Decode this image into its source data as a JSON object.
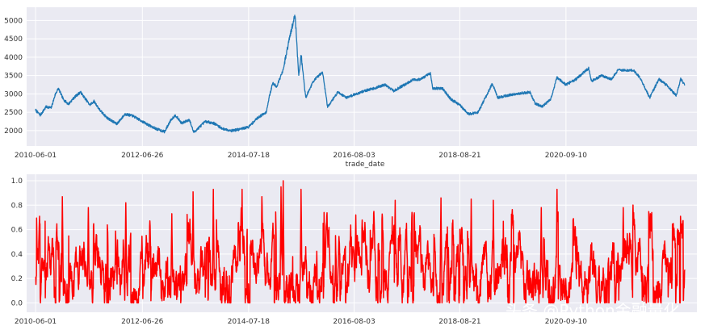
{
  "chart_data": [
    {
      "type": "line",
      "xlabel": "trade_date",
      "ylabel": "",
      "x_range": [
        "2010-06-01",
        "2022-12-30"
      ],
      "ylim": [
        1800,
        5250
      ],
      "yticks": [
        2000,
        2500,
        3000,
        3500,
        4000,
        4500,
        5000
      ],
      "xticks": [
        "2010-06-01",
        "2012-06-26",
        "2014-07-18",
        "2016-08-03",
        "2018-08-21",
        "2020-09-10"
      ],
      "grid": true,
      "series": [
        {
          "color": "#1f77b4",
          "points": [
            [
              "2010-06-01",
              2560
            ],
            [
              "2010-07-05",
              2420
            ],
            [
              "2010-08-15",
              2650
            ],
            [
              "2010-09-20",
              2620
            ],
            [
              "2010-10-20",
              3000
            ],
            [
              "2010-11-10",
              3150
            ],
            [
              "2010-12-15",
              2850
            ],
            [
              "2011-01-20",
              2720
            ],
            [
              "2011-03-01",
              2900
            ],
            [
              "2011-04-15",
              3050
            ],
            [
              "2011-06-20",
              2700
            ],
            [
              "2011-07-20",
              2800
            ],
            [
              "2011-09-01",
              2550
            ],
            [
              "2011-10-20",
              2350
            ],
            [
              "2011-12-28",
              2180
            ],
            [
              "2012-02-25",
              2450
            ],
            [
              "2012-04-20",
              2400
            ],
            [
              "2012-06-26",
              2250
            ],
            [
              "2012-08-10",
              2150
            ],
            [
              "2012-10-01",
              2050
            ],
            [
              "2012-12-01",
              1970
            ],
            [
              "2013-01-15",
              2300
            ],
            [
              "2013-02-15",
              2420
            ],
            [
              "2013-04-01",
              2200
            ],
            [
              "2013-05-25",
              2300
            ],
            [
              "2013-06-25",
              1950
            ],
            [
              "2013-09-15",
              2250
            ],
            [
              "2013-11-15",
              2200
            ],
            [
              "2014-01-15",
              2050
            ],
            [
              "2014-03-20",
              2000
            ],
            [
              "2014-05-10",
              2030
            ],
            [
              "2014-07-18",
              2100
            ],
            [
              "2014-09-20",
              2350
            ],
            [
              "2014-11-20",
              2500
            ],
            [
              "2014-12-10",
              2900
            ],
            [
              "2015-01-05",
              3300
            ],
            [
              "2015-02-01",
              3200
            ],
            [
              "2015-03-20",
              3650
            ],
            [
              "2015-04-30",
              4450
            ],
            [
              "2015-06-12",
              5166
            ],
            [
              "2015-07-08",
              3500
            ],
            [
              "2015-07-25",
              4050
            ],
            [
              "2015-08-26",
              2900
            ],
            [
              "2015-10-20",
              3350
            ],
            [
              "2015-12-23",
              3600
            ],
            [
              "2016-01-28",
              2650
            ],
            [
              "2016-04-10",
              3050
            ],
            [
              "2016-06-10",
              2900
            ],
            [
              "2016-08-03",
              2980
            ],
            [
              "2016-10-15",
              3080
            ],
            [
              "2016-12-20",
              3150
            ],
            [
              "2017-03-10",
              3250
            ],
            [
              "2017-05-10",
              3080
            ],
            [
              "2017-07-25",
              3250
            ],
            [
              "2017-09-20",
              3380
            ],
            [
              "2017-11-15",
              3400
            ],
            [
              "2018-01-26",
              3560
            ],
            [
              "2018-02-09",
              3150
            ],
            [
              "2018-04-20",
              3150
            ],
            [
              "2018-06-20",
              2850
            ],
            [
              "2018-08-21",
              2700
            ],
            [
              "2018-10-19",
              2450
            ],
            [
              "2018-12-28",
              2500
            ],
            [
              "2019-02-25",
              2950
            ],
            [
              "2019-04-08",
              3280
            ],
            [
              "2019-05-15",
              2900
            ],
            [
              "2019-07-15",
              2950
            ],
            [
              "2019-09-20",
              3000
            ],
            [
              "2019-12-31",
              3050
            ],
            [
              "2020-02-03",
              2750
            ],
            [
              "2020-03-23",
              2650
            ],
            [
              "2020-05-25",
              2850
            ],
            [
              "2020-07-09",
              3450
            ],
            [
              "2020-09-10",
              3250
            ],
            [
              "2020-11-20",
              3400
            ],
            [
              "2021-02-18",
              3700
            ],
            [
              "2021-03-10",
              3350
            ],
            [
              "2021-05-20",
              3500
            ],
            [
              "2021-07-28",
              3400
            ],
            [
              "2021-09-15",
              3650
            ],
            [
              "2021-12-31",
              3640
            ],
            [
              "2022-02-15",
              3450
            ],
            [
              "2022-04-26",
              2900
            ],
            [
              "2022-06-30",
              3400
            ],
            [
              "2022-08-20",
              3250
            ],
            [
              "2022-10-31",
              2950
            ],
            [
              "2022-12-01",
              3400
            ],
            [
              "2022-12-30",
              3250
            ]
          ]
        }
      ]
    },
    {
      "type": "line",
      "xlabel": "",
      "ylabel": "",
      "x_range": [
        "2010-06-01",
        "2022-12-30"
      ],
      "ylim": [
        -0.05,
        1.02
      ],
      "yticks": [
        0.0,
        0.2,
        0.4,
        0.6,
        0.8,
        1.0
      ],
      "xticks": [
        "2010-06-01",
        "2012-06-26",
        "2014-07-18",
        "2016-08-03",
        "2018-08-21",
        "2020-09-10"
      ],
      "grid": true,
      "series": [
        {
          "color": "#ff0000",
          "count": 3050,
          "random_seed": 20230,
          "spikes": [
            [
              "2010-12-08",
              0.87
            ],
            [
              "2011-06-10",
              0.78
            ],
            [
              "2012-03-01",
              0.82
            ],
            [
              "2013-01-20",
              0.73
            ],
            [
              "2013-06-20",
              0.91
            ],
            [
              "2013-11-10",
              0.93
            ],
            [
              "2014-06-02",
              0.93
            ],
            [
              "2014-10-20",
              0.87
            ],
            [
              "2015-03-05",
              0.95
            ],
            [
              "2015-03-20",
              1.0
            ],
            [
              "2015-07-25",
              0.93
            ],
            [
              "2016-08-15",
              0.72
            ],
            [
              "2017-05-20",
              0.84
            ],
            [
              "2018-04-10",
              0.86
            ],
            [
              "2018-11-10",
              0.85
            ],
            [
              "2019-04-15",
              0.84
            ],
            [
              "2020-07-09",
              0.93
            ],
            [
              "2020-03-20",
              0.78
            ],
            [
              "2021-10-20",
              0.78
            ],
            [
              "2022-05-10",
              0.74
            ],
            [
              "2022-10-10",
              0.65
            ]
          ]
        }
      ]
    }
  ],
  "watermark": "头条 @Python金融量化"
}
